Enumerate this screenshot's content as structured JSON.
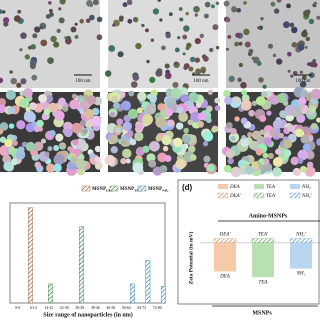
{
  "images": {
    "scale_labels": [
      "100 nm",
      "100 nm",
      "100 nm"
    ]
  },
  "chart_data": [
    {
      "type": "bar",
      "x_label": "Size range of nanoparticles (in nm)",
      "categories": [
        "0-6",
        "6-14",
        "14-22",
        "22-30",
        "30-38",
        "38-46",
        "46-56",
        "56-64",
        "64-72",
        "72-80"
      ],
      "series": [
        {
          "name": "MSNP",
          "subscript": "DEA",
          "color": "#8b5a3c",
          "values": [
            0,
            40,
            0,
            0,
            0,
            0,
            0,
            0,
            0,
            0
          ]
        },
        {
          "name": "MSNP",
          "subscript": "TEA",
          "color": "#3a7a3a",
          "values": [
            0,
            0,
            8,
            0,
            32,
            0,
            0,
            0,
            0,
            0
          ]
        },
        {
          "name": "MSNP",
          "subscript": "NH₂",
          "color": "#2f7ea8",
          "values": [
            0,
            0,
            0,
            0,
            0,
            0,
            0,
            8,
            18,
            7
          ]
        }
      ],
      "ylim": [
        0,
        42
      ],
      "hatch": true,
      "legend": "top-right"
    },
    {
      "type": "zeta",
      "panel_label": "(d)",
      "y_label": "Zeta Potential (in mV)",
      "categories": [
        "DEA",
        "TEA",
        "NH₂"
      ],
      "series": [
        {
          "name": "MSNPs",
          "colors": [
            "#f6c9a8",
            "#b9e0b0",
            "#b8d6ef"
          ],
          "values": [
            -20,
            -24,
            -18
          ]
        },
        {
          "name": "Amino-MSNPs",
          "colors": [
            "#c98a5a",
            "#5f9e55",
            "#5b97c8"
          ],
          "labels": [
            "DEA'",
            "TEA'",
            "NH₂'"
          ],
          "values": [
            3,
            3,
            3
          ]
        }
      ],
      "ylim": [
        -40,
        30
      ],
      "legend": "top"
    }
  ]
}
